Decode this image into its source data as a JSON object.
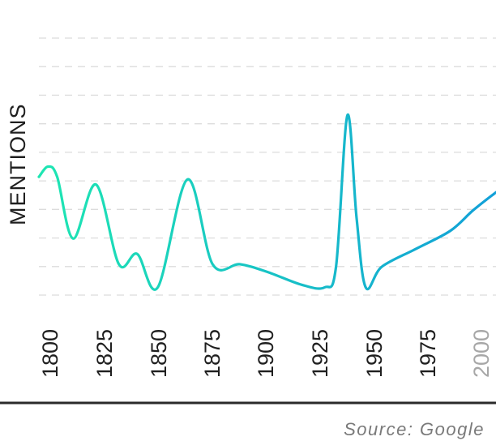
{
  "chart_data": {
    "type": "line",
    "ylabel": "MENTIONS",
    "source": "Source: Google",
    "x_ticks": [
      {
        "label": "1800",
        "value": 1800,
        "muted": false
      },
      {
        "label": "1825",
        "value": 1825,
        "muted": false
      },
      {
        "label": "1850",
        "value": 1850,
        "muted": false
      },
      {
        "label": "1875",
        "value": 1875,
        "muted": false
      },
      {
        "label": "1900",
        "value": 1900,
        "muted": false
      },
      {
        "label": "1925",
        "value": 1925,
        "muted": false
      },
      {
        "label": "1950",
        "value": 1950,
        "muted": false
      },
      {
        "label": "1975",
        "value": 1975,
        "muted": false
      },
      {
        "label": "2000",
        "value": 2000,
        "muted": true
      }
    ],
    "xlim": [
      1800,
      2000
    ],
    "ylim": [
      0,
      10
    ],
    "grid": true,
    "gridlines": 10,
    "y_axis_ticks_shown": false,
    "gradient": {
      "start": "#1ee6b2",
      "end": "#12a0d8"
    },
    "series": [
      {
        "points": [
          [
            1800,
            4.6
          ],
          [
            1804,
            5.0
          ],
          [
            1808,
            4.6
          ],
          [
            1815,
            2.2
          ],
          [
            1825,
            4.3
          ],
          [
            1835,
            1.2
          ],
          [
            1843,
            1.6
          ],
          [
            1852,
            0.3
          ],
          [
            1865,
            4.5
          ],
          [
            1876,
            1.2
          ],
          [
            1888,
            1.2
          ],
          [
            1900,
            0.9
          ],
          [
            1915,
            0.4
          ],
          [
            1925,
            0.3
          ],
          [
            1930,
            1.1
          ],
          [
            1935,
            7.0
          ],
          [
            1939,
            3.0
          ],
          [
            1943,
            0.3
          ],
          [
            1950,
            1.1
          ],
          [
            1965,
            1.8
          ],
          [
            1980,
            2.5
          ],
          [
            1990,
            3.3
          ],
          [
            2000,
            4.0
          ]
        ]
      }
    ]
  }
}
